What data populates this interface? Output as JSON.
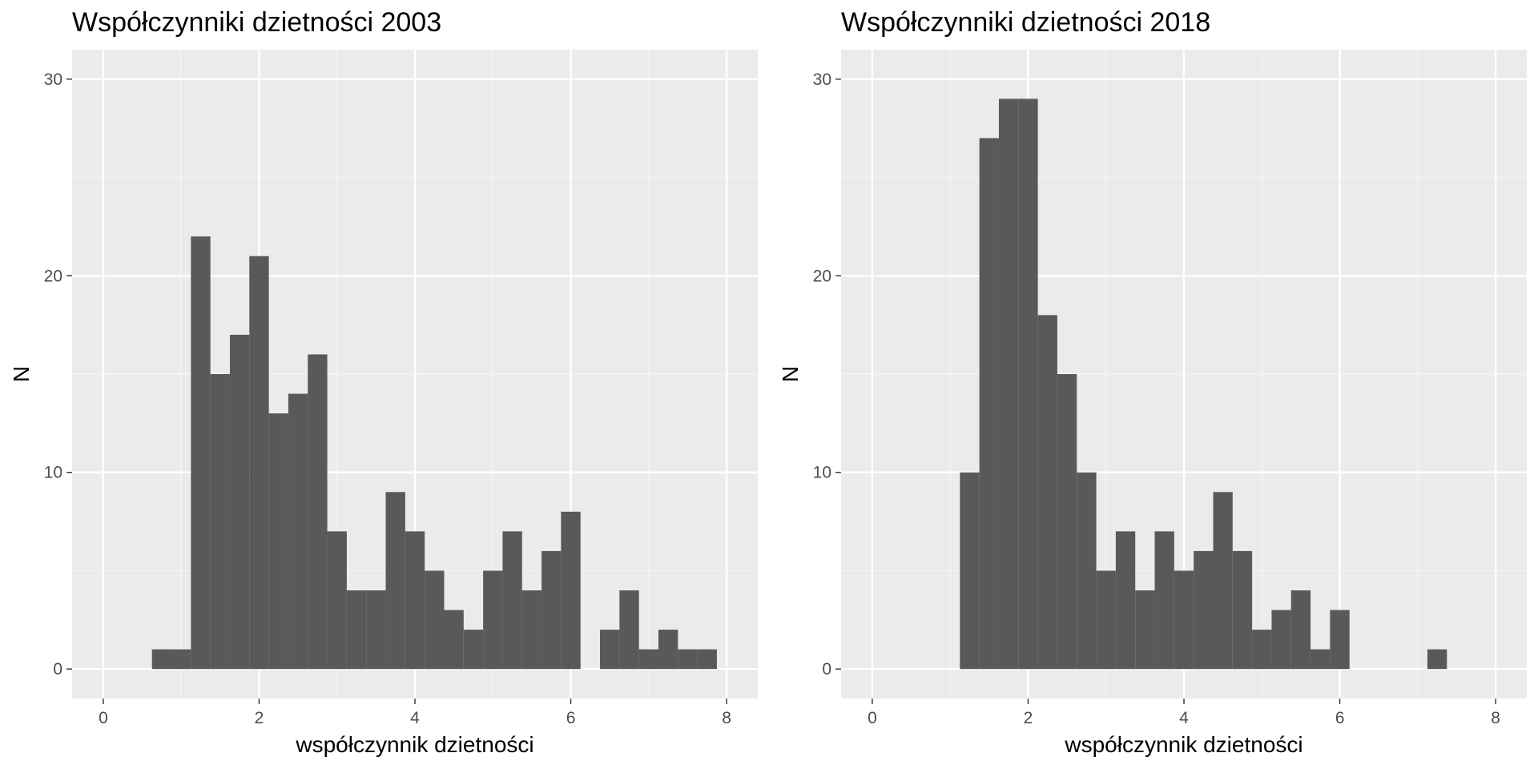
{
  "chart_data": [
    {
      "type": "bar",
      "title": "Współczynniki dzietności 2003",
      "xlabel": "współczynnik dzietności",
      "ylabel": "N",
      "xlim": [
        -0.4,
        8.4
      ],
      "ylim": [
        -1.5,
        31.5
      ],
      "x_ticks": [
        0,
        2,
        4,
        6,
        8
      ],
      "y_ticks": [
        0,
        10,
        20,
        30
      ],
      "bin_width": 0.25,
      "bin_starts": [
        0.625,
        0.875,
        1.125,
        1.375,
        1.625,
        1.875,
        2.125,
        2.375,
        2.625,
        2.875,
        3.125,
        3.375,
        3.625,
        3.875,
        4.125,
        4.375,
        4.625,
        4.875,
        5.125,
        5.375,
        5.625,
        5.875,
        6.125,
        6.375,
        6.625,
        6.875,
        7.125,
        7.375,
        7.625
      ],
      "values": [
        1,
        1,
        22,
        15,
        17,
        21,
        13,
        14,
        16,
        7,
        4,
        4,
        9,
        7,
        5,
        3,
        2,
        5,
        7,
        4,
        6,
        8,
        0,
        2,
        4,
        1,
        2,
        1,
        1
      ],
      "grid": true
    },
    {
      "type": "bar",
      "title": "Współczynniki dzietności 2018",
      "xlabel": "współczynnik dzietności",
      "ylabel": "N",
      "xlim": [
        -0.4,
        8.4
      ],
      "ylim": [
        -1.5,
        31.5
      ],
      "x_ticks": [
        0,
        2,
        4,
        6,
        8
      ],
      "y_ticks": [
        0,
        10,
        20,
        30
      ],
      "bin_width": 0.25,
      "bin_starts": [
        1.125,
        1.375,
        1.625,
        1.875,
        2.125,
        2.375,
        2.625,
        2.875,
        3.125,
        3.375,
        3.625,
        3.875,
        4.125,
        4.375,
        4.625,
        4.875,
        5.125,
        5.375,
        5.625,
        5.875,
        6.125,
        6.375,
        6.625,
        6.875,
        7.125
      ],
      "values": [
        10,
        27,
        29,
        29,
        18,
        15,
        10,
        5,
        7,
        4,
        7,
        5,
        6,
        9,
        6,
        2,
        3,
        4,
        1,
        3,
        0,
        0,
        0,
        0,
        1
      ],
      "grid": true
    }
  ],
  "colors": {
    "panel_background": "#ebebeb",
    "grid_major": "#ffffff",
    "grid_minor": "#f5f5f5",
    "bar_fill": "#595959",
    "tick_mark": "#333333",
    "tick_label": "#4d4d4d"
  }
}
